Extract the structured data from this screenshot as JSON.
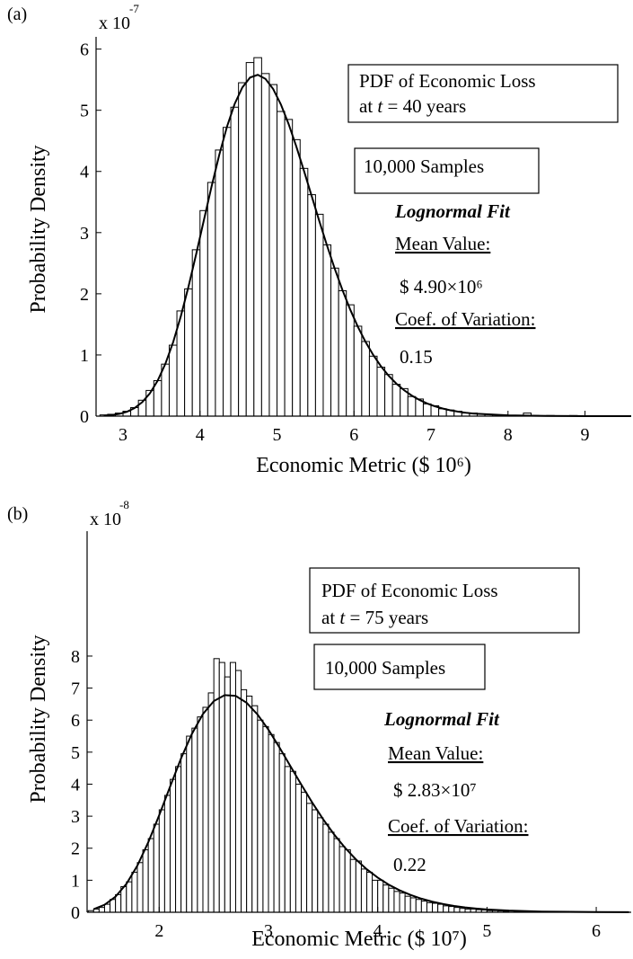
{
  "chart_data": [
    {
      "type": "histogram",
      "panel": "(a)",
      "y_multiplier": "x 10",
      "y_exponent": "-7",
      "xlabel": "Economic Metric ($ 10⁶)",
      "ylabel": "Probability Density",
      "xlim": [
        2.65,
        9.6
      ],
      "ylim": [
        0,
        6.2
      ],
      "xticks": [
        3,
        4,
        5,
        6,
        7,
        8,
        9
      ],
      "yticks": [
        0,
        1,
        2,
        3,
        4,
        5,
        6
      ],
      "color": "#ffffff",
      "edgecolor": "#000000",
      "bins": [
        2.7,
        2.8,
        2.9,
        3.0,
        3.1,
        3.2,
        3.3,
        3.4,
        3.5,
        3.6,
        3.7,
        3.8,
        3.9,
        4.0,
        4.1,
        4.2,
        4.3,
        4.4,
        4.5,
        4.6,
        4.7,
        4.8,
        4.9,
        5.0,
        5.1,
        5.2,
        5.3,
        5.4,
        5.5,
        5.6,
        5.7,
        5.8,
        5.9,
        6.0,
        6.1,
        6.2,
        6.3,
        6.4,
        6.5,
        6.6,
        6.7,
        6.8,
        6.9,
        7.0,
        7.1,
        7.2,
        7.3,
        7.4,
        7.5,
        7.6,
        7.7,
        7.8,
        7.9,
        8.0,
        8.1,
        8.2,
        8.3,
        8.4,
        8.5,
        8.6,
        8.7,
        8.8,
        8.9,
        9.0,
        9.1,
        9.2,
        9.3,
        9.4,
        9.5,
        9.6
      ],
      "values": [
        0.02,
        0.03,
        0.05,
        0.08,
        0.14,
        0.26,
        0.42,
        0.58,
        0.85,
        1.16,
        1.72,
        2.08,
        2.72,
        3.36,
        3.82,
        4.35,
        4.72,
        5.05,
        5.45,
        5.78,
        5.86,
        5.6,
        5.42,
        4.98,
        4.85,
        4.52,
        4.05,
        3.62,
        3.3,
        2.8,
        2.42,
        2.05,
        1.82,
        1.47,
        1.22,
        0.98,
        0.8,
        0.68,
        0.52,
        0.45,
        0.32,
        0.28,
        0.2,
        0.17,
        0.12,
        0.1,
        0.08,
        0.05,
        0.05,
        0.03,
        0.03,
        0.02,
        0.02,
        0.01,
        0.01,
        0.05,
        0.01,
        0,
        0.01,
        0,
        0,
        0.01,
        0,
        0,
        0,
        0,
        0,
        0,
        0
      ],
      "fit": {
        "color": "#000000",
        "x": [
          2.75,
          2.85,
          2.95,
          3.05,
          3.15,
          3.25,
          3.35,
          3.45,
          3.55,
          3.65,
          3.75,
          3.85,
          3.95,
          4.05,
          4.15,
          4.25,
          4.35,
          4.45,
          4.55,
          4.65,
          4.75,
          4.85,
          4.95,
          5.05,
          5.15,
          5.25,
          5.35,
          5.45,
          5.55,
          5.65,
          5.75,
          5.85,
          5.95,
          6.05,
          6.15,
          6.25,
          6.35,
          6.45,
          6.55,
          6.65,
          6.75,
          6.85,
          6.95,
          7.05,
          7.15,
          7.25,
          7.35,
          7.45,
          7.55,
          8.0,
          8.5,
          9.0,
          9.6
        ],
        "values": [
          0.007,
          0.017,
          0.036,
          0.071,
          0.131,
          0.229,
          0.375,
          0.58,
          0.855,
          1.205,
          1.63,
          2.115,
          2.648,
          3.203,
          3.754,
          4.272,
          4.731,
          5.104,
          5.374,
          5.535,
          5.579,
          5.513,
          5.347,
          5.096,
          4.777,
          4.41,
          4.01,
          3.598,
          3.186,
          2.786,
          2.409,
          2.061,
          1.744,
          1.461,
          1.213,
          0.999,
          0.815,
          0.66,
          0.531,
          0.424,
          0.336,
          0.265,
          0.207,
          0.161,
          0.125,
          0.096,
          0.074,
          0.056,
          0.043,
          0.012,
          0.003,
          0.0007,
          0.0001
        ]
      },
      "annotations": {
        "box": [
          "PDF of Economic Loss",
          [
            "at ",
            "t",
            " = 40 years"
          ]
        ],
        "samples": "10,000 Samples",
        "fit_title": "Lognormal Fit",
        "mean_label": "Mean Value:",
        "mean": "$ 4.90×10⁶",
        "cov_label": "Coef. of Variation:",
        "cov": "0.15"
      }
    },
    {
      "type": "histogram",
      "panel": "(b)",
      "y_multiplier": "x 10",
      "y_exponent": "-8",
      "xlabel": "Economic Metric ($ 10⁷)",
      "ylabel": "Probability Density",
      "xlim": [
        1.34,
        6.32
      ],
      "ylim": [
        0,
        11.9
      ],
      "xticks": [
        2,
        3,
        4,
        5,
        6
      ],
      "yticks": [
        0,
        1,
        2,
        3,
        4,
        5,
        6,
        7,
        8
      ],
      "color": "#ffffff",
      "edgecolor": "#000000",
      "bins": [
        1.35,
        1.4,
        1.45,
        1.5,
        1.55,
        1.6,
        1.65,
        1.7,
        1.75,
        1.8,
        1.85,
        1.9,
        1.95,
        2.0,
        2.05,
        2.1,
        2.15,
        2.2,
        2.25,
        2.3,
        2.35,
        2.4,
        2.45,
        2.5,
        2.55,
        2.6,
        2.65,
        2.7,
        2.75,
        2.8,
        2.85,
        2.9,
        2.95,
        3.0,
        3.05,
        3.1,
        3.15,
        3.2,
        3.25,
        3.3,
        3.35,
        3.4,
        3.45,
        3.5,
        3.55,
        3.6,
        3.65,
        3.7,
        3.75,
        3.8,
        3.85,
        3.9,
        3.95,
        4.0,
        4.05,
        4.1,
        4.15,
        4.2,
        4.25,
        4.3,
        4.35,
        4.4,
        4.45,
        4.5,
        4.55,
        4.6,
        4.65,
        4.7,
        4.75,
        4.8,
        4.85,
        4.9,
        4.95,
        5.0,
        5.05,
        5.1,
        5.15,
        5.2,
        5.25,
        5.3,
        5.35
      ],
      "values": [
        0.05,
        0.1,
        0.15,
        0.25,
        0.4,
        0.55,
        0.8,
        0.95,
        1.25,
        1.55,
        1.95,
        2.3,
        2.75,
        3.2,
        3.65,
        4.15,
        4.55,
        4.95,
        5.5,
        5.75,
        6.1,
        6.4,
        6.85,
        7.92,
        7.8,
        7.35,
        7.8,
        7.55,
        6.95,
        6.75,
        6.45,
        6.0,
        5.8,
        5.55,
        5.3,
        4.95,
        4.55,
        4.4,
        4.0,
        3.75,
        3.4,
        3.2,
        2.95,
        2.75,
        2.5,
        2.3,
        2.05,
        1.95,
        1.65,
        1.6,
        1.35,
        1.25,
        1.0,
        1.0,
        0.85,
        0.75,
        0.65,
        0.6,
        0.5,
        0.45,
        0.4,
        0.35,
        0.3,
        0.28,
        0.25,
        0.2,
        0.18,
        0.15,
        0.12,
        0.1,
        0.1,
        0.08,
        0.07,
        0.05,
        0.05,
        0.04,
        0.03,
        0.05,
        0.02,
        0.02
      ],
      "fit": {
        "color": "#000000",
        "x": [
          1.4,
          1.5,
          1.6,
          1.7,
          1.8,
          1.9,
          2.0,
          2.1,
          2.2,
          2.3,
          2.4,
          2.5,
          2.6,
          2.7,
          2.8,
          2.9,
          3.0,
          3.1,
          3.2,
          3.3,
          3.4,
          3.5,
          3.6,
          3.7,
          3.8,
          3.9,
          4.0,
          4.1,
          4.2,
          4.3,
          4.4,
          4.5,
          4.6,
          4.7,
          4.8,
          4.9,
          5.0,
          5.2,
          5.5,
          6.0,
          6.3
        ],
        "values": [
          0.098,
          0.235,
          0.486,
          0.886,
          1.455,
          2.186,
          3.03,
          3.926,
          4.806,
          5.576,
          6.189,
          6.595,
          6.782,
          6.757,
          6.542,
          6.175,
          5.698,
          5.15,
          4.569,
          3.989,
          3.429,
          2.907,
          2.435,
          2.017,
          1.653,
          1.342,
          1.081,
          0.864,
          0.686,
          0.541,
          0.424,
          0.33,
          0.256,
          0.198,
          0.152,
          0.117,
          0.089,
          0.052,
          0.022,
          0.0053,
          0.0022
        ]
      },
      "annotations": {
        "box": [
          "PDF of Economic Loss",
          [
            "at ",
            "t",
            " = 75 years"
          ]
        ],
        "samples": "10,000 Samples",
        "fit_title": "Lognormal Fit",
        "mean_label": "Mean Value:",
        "mean": "$ 2.83×10⁷",
        "cov_label": "Coef. of Variation:",
        "cov": "0.22"
      }
    }
  ]
}
